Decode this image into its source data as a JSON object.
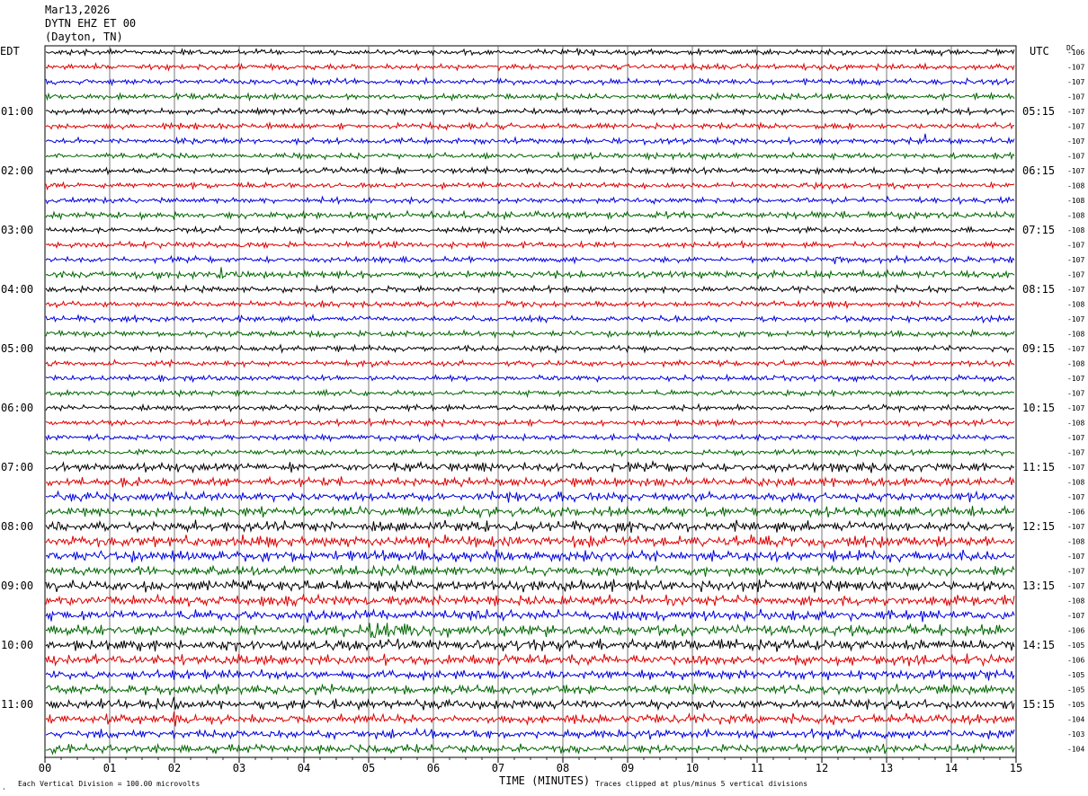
{
  "header": {
    "date": "Mar13,2026",
    "station": "DYTN EHZ ET 00",
    "location": "(Dayton, TN)"
  },
  "labels": {
    "left_zone": "EDT",
    "right_zone": "UTC",
    "dc": "DC",
    "xlabel": "TIME (MINUTES)",
    "scale_note": "Each Vertical Division =  100.00 microvolts",
    "clip_note": "Traces clipped at plus/minus 5 vertical divisions",
    "corner_mark": "¸"
  },
  "colors": {
    "trace_cycle": [
      "#000000",
      "#dd0000",
      "#0000dd",
      "#006600"
    ],
    "grid": "#000000"
  },
  "chart_data": {
    "type": "line",
    "subtype": "helicorder",
    "xlim": [
      0,
      15
    ],
    "x_ticks": [
      "00",
      "01",
      "02",
      "03",
      "04",
      "05",
      "06",
      "07",
      "08",
      "09",
      "10",
      "11",
      "12",
      "13",
      "14",
      "15"
    ],
    "trace_count": 48,
    "left_time_labels": [
      {
        "row": 4,
        "label": "01:00"
      },
      {
        "row": 8,
        "label": "02:00"
      },
      {
        "row": 12,
        "label": "03:00"
      },
      {
        "row": 16,
        "label": "04:00"
      },
      {
        "row": 20,
        "label": "05:00"
      },
      {
        "row": 24,
        "label": "06:00"
      },
      {
        "row": 28,
        "label": "07:00"
      },
      {
        "row": 32,
        "label": "08:00"
      },
      {
        "row": 36,
        "label": "09:00"
      },
      {
        "row": 40,
        "label": "10:00"
      },
      {
        "row": 44,
        "label": "11:00"
      }
    ],
    "right_time_labels": [
      {
        "row": 4,
        "label": "05:15"
      },
      {
        "row": 8,
        "label": "06:15"
      },
      {
        "row": 12,
        "label": "07:15"
      },
      {
        "row": 16,
        "label": "08:15"
      },
      {
        "row": 20,
        "label": "09:15"
      },
      {
        "row": 24,
        "label": "10:15"
      },
      {
        "row": 28,
        "label": "11:15"
      },
      {
        "row": 32,
        "label": "12:15"
      },
      {
        "row": 36,
        "label": "13:15"
      },
      {
        "row": 40,
        "label": "14:15"
      },
      {
        "row": 44,
        "label": "15:15"
      }
    ],
    "dc_offsets": [
      "-106",
      "-107",
      "-107",
      "-107",
      "-107",
      "-107",
      "-107",
      "-107",
      "-107",
      "-108",
      "-108",
      "-108",
      "-108",
      "-107",
      "-107",
      "-107",
      "-107",
      "-108",
      "-107",
      "-108",
      "-107",
      "-108",
      "-107",
      "-107",
      "-107",
      "-108",
      "-107",
      "-107",
      "-107",
      "-108",
      "-107",
      "-106",
      "-107",
      "-108",
      "-107",
      "-107",
      "-107",
      "-108",
      "-107",
      "-106",
      "-105",
      "-106",
      "-105",
      "-105",
      "-105",
      "-104",
      "-103",
      "-104"
    ],
    "noise_level": [
      1.0,
      1.0,
      1.0,
      1.0,
      1.0,
      1.0,
      1.0,
      1.0,
      1.0,
      1.0,
      1.0,
      1.2,
      1.0,
      1.0,
      1.0,
      1.2,
      1.0,
      1.0,
      1.0,
      1.0,
      1.0,
      1.0,
      1.0,
      1.0,
      1.0,
      1.0,
      1.0,
      1.0,
      1.6,
      1.5,
      1.6,
      1.6,
      1.8,
      1.9,
      1.9,
      1.7,
      1.9,
      1.8,
      1.8,
      1.9,
      1.9,
      1.8,
      1.6,
      1.6,
      1.7,
      1.6,
      1.5,
      1.5
    ],
    "events": [
      {
        "row": 6,
        "x": 13.6,
        "amp": 4.5,
        "dur": 0.05
      },
      {
        "row": 12,
        "x": 1.45,
        "amp": 3.0,
        "dur": 0.04
      },
      {
        "row": 12,
        "x": 2.7,
        "amp": 3.0,
        "dur": 0.04
      },
      {
        "row": 14,
        "x": 5.6,
        "amp": 1.5,
        "dur": 0.05
      },
      {
        "row": 14,
        "x": 12.2,
        "amp": 2.0,
        "dur": 0.08
      },
      {
        "row": 15,
        "x": 1.45,
        "amp": 1.8,
        "dur": 0.15
      },
      {
        "row": 15,
        "x": 1.75,
        "amp": 3.2,
        "dur": 0.12
      },
      {
        "row": 15,
        "x": 2.4,
        "amp": 1.8,
        "dur": 0.2
      },
      {
        "row": 15,
        "x": 2.7,
        "amp": 2.5,
        "dur": 0.3
      },
      {
        "row": 30,
        "x": 7.9,
        "amp": 1.6,
        "dur": 0.4
      },
      {
        "row": 38,
        "x": 4.05,
        "amp": 1.6,
        "dur": 0.3
      },
      {
        "row": 39,
        "x": 5.0,
        "amp": 3.5,
        "dur": 1.6
      },
      {
        "row": 41,
        "x": 2.05,
        "amp": 3.5,
        "dur": 0.06
      },
      {
        "row": 44,
        "x": 2.0,
        "amp": 4.5,
        "dur": 0.08
      },
      {
        "row": 45,
        "x": 2.0,
        "amp": 4.5,
        "dur": 0.08
      },
      {
        "row": 45,
        "x": 8.35,
        "amp": 4.0,
        "dur": 0.06
      }
    ]
  }
}
